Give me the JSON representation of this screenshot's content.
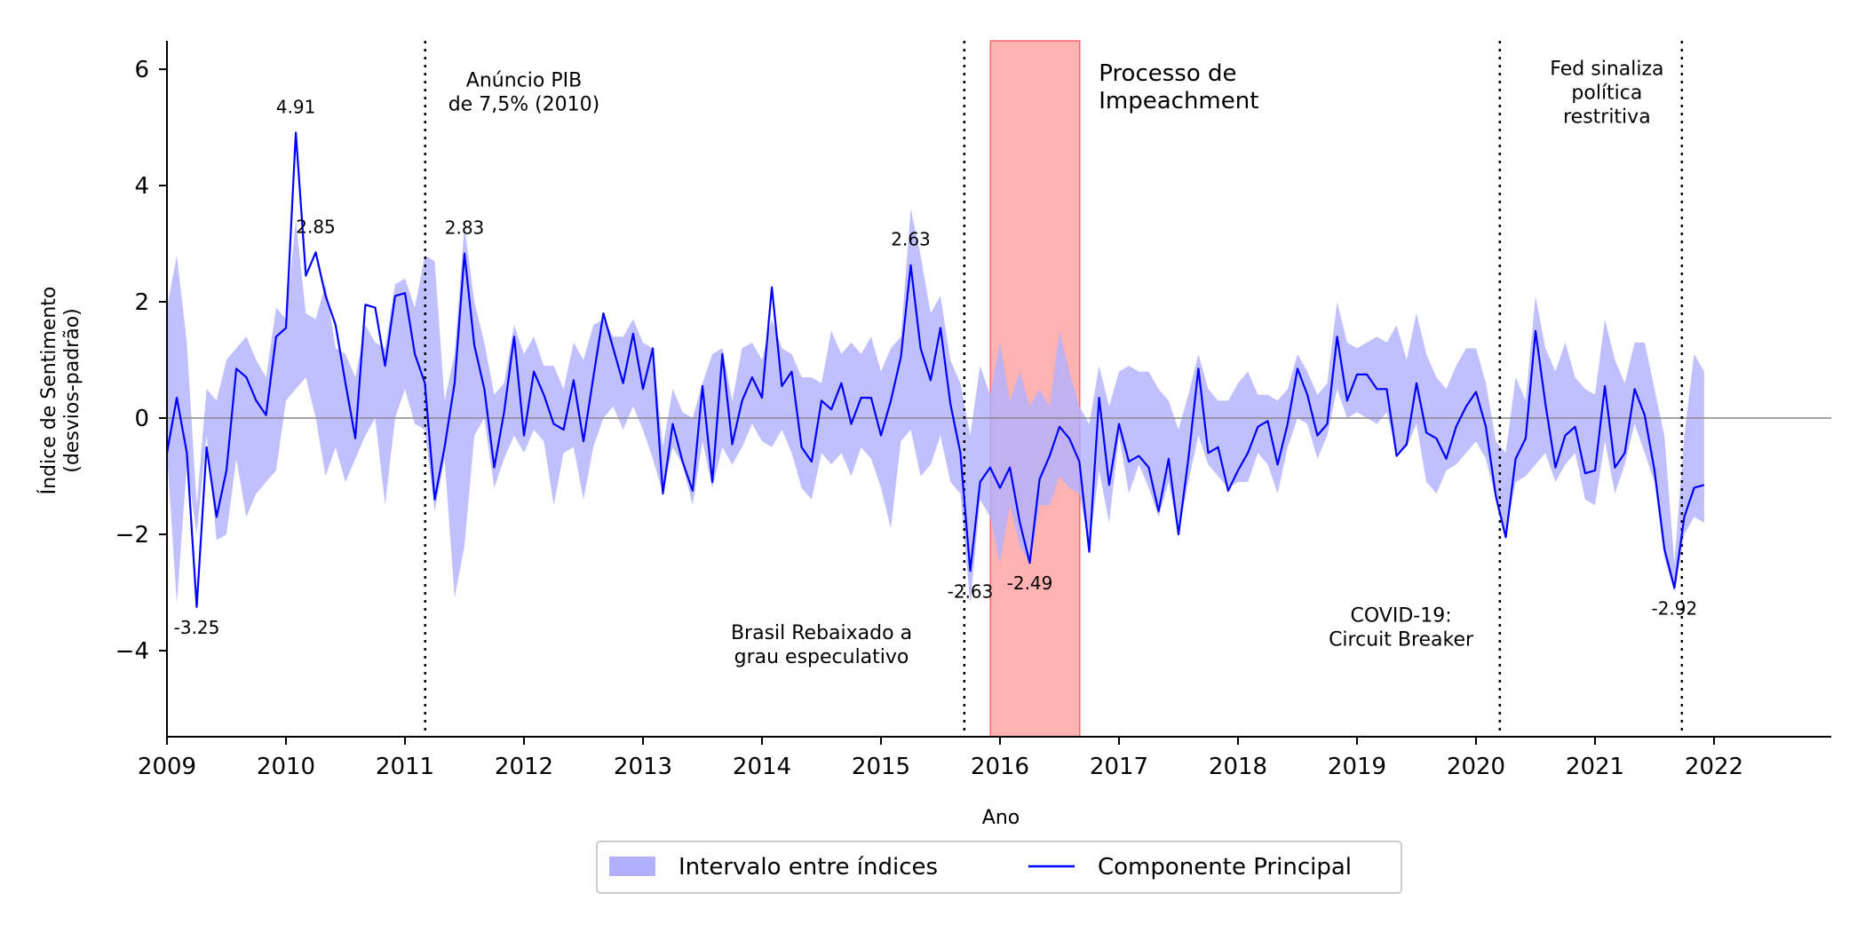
{
  "chart_data": {
    "type": "line",
    "xlabel": "Ano",
    "ylabel_lines": [
      "Índice de Sentimento",
      "(desvios-padrão)"
    ],
    "xlim": [
      2009,
      2023
    ],
    "ylim": [
      -5.5,
      6.5
    ],
    "x_ticks": [
      2009,
      2010,
      2011,
      2012,
      2013,
      2014,
      2015,
      2016,
      2017,
      2018,
      2019,
      2020,
      2021,
      2022
    ],
    "x_tick_labels": [
      "2009",
      "2010",
      "2011",
      "2012",
      "2013",
      "2014",
      "2015",
      "2016",
      "2017",
      "2018",
      "2019",
      "2020",
      "2021",
      "2022"
    ],
    "y_ticks": [
      -4,
      -2,
      0,
      2,
      4,
      6
    ],
    "y_tick_labels": [
      "−4",
      "−2",
      "0",
      "2",
      "4",
      "6"
    ],
    "zero_line": 0,
    "series": [
      {
        "name": "Componente Principal",
        "color": "#0000ff",
        "x": [
          2009.0,
          2009.083,
          2009.167,
          2009.25,
          2009.333,
          2009.417,
          2009.5,
          2009.583,
          2009.667,
          2009.75,
          2009.833,
          2009.917,
          2010.0,
          2010.083,
          2010.167,
          2010.25,
          2010.333,
          2010.417,
          2010.5,
          2010.583,
          2010.667,
          2010.75,
          2010.833,
          2010.917,
          2011.0,
          2011.083,
          2011.167,
          2011.25,
          2011.333,
          2011.417,
          2011.5,
          2011.583,
          2011.667,
          2011.75,
          2011.833,
          2011.917,
          2012.0,
          2012.083,
          2012.167,
          2012.25,
          2012.333,
          2012.417,
          2012.5,
          2012.583,
          2012.667,
          2012.75,
          2012.833,
          2012.917,
          2013.0,
          2013.083,
          2013.167,
          2013.25,
          2013.333,
          2013.417,
          2013.5,
          2013.583,
          2013.667,
          2013.75,
          2013.833,
          2013.917,
          2014.0,
          2014.083,
          2014.167,
          2014.25,
          2014.333,
          2014.417,
          2014.5,
          2014.583,
          2014.667,
          2014.75,
          2014.833,
          2014.917,
          2015.0,
          2015.083,
          2015.167,
          2015.25,
          2015.333,
          2015.417,
          2015.5,
          2015.583,
          2015.667,
          2015.75,
          2015.833,
          2015.917,
          2016.0,
          2016.083,
          2016.167,
          2016.25,
          2016.333,
          2016.417,
          2016.5,
          2016.583,
          2016.667,
          2016.75,
          2016.833,
          2016.917,
          2017.0,
          2017.083,
          2017.167,
          2017.25,
          2017.333,
          2017.417,
          2017.5,
          2017.583,
          2017.667,
          2017.75,
          2017.833,
          2017.917,
          2018.0,
          2018.083,
          2018.167,
          2018.25,
          2018.333,
          2018.417,
          2018.5,
          2018.583,
          2018.667,
          2018.75,
          2018.833,
          2018.917,
          2019.0,
          2019.083,
          2019.167,
          2019.25,
          2019.333,
          2019.417,
          2019.5,
          2019.583,
          2019.667,
          2019.75,
          2019.833,
          2019.917,
          2020.0,
          2020.083,
          2020.167,
          2020.25,
          2020.333,
          2020.417,
          2020.5,
          2020.583,
          2020.667,
          2020.75,
          2020.833,
          2020.917,
          2021.0,
          2021.083,
          2021.167,
          2021.25,
          2021.333,
          2021.417,
          2021.5,
          2021.583,
          2021.667,
          2021.75,
          2021.833,
          2021.917
        ],
        "y": [
          -0.6,
          0.35,
          -0.6,
          -3.25,
          -0.5,
          -1.7,
          -0.9,
          0.85,
          0.7,
          0.3,
          0.05,
          1.4,
          1.55,
          4.91,
          2.45,
          2.85,
          2.1,
          1.6,
          0.6,
          -0.35,
          1.95,
          1.9,
          0.9,
          2.1,
          2.15,
          1.1,
          0.6,
          -1.4,
          -0.5,
          0.6,
          2.83,
          1.25,
          0.5,
          -0.85,
          0.1,
          1.4,
          -0.3,
          0.8,
          0.4,
          -0.1,
          -0.2,
          0.65,
          -0.4,
          0.7,
          1.8,
          1.2,
          0.6,
          1.45,
          0.5,
          1.2,
          -1.3,
          -0.1,
          -0.75,
          -1.25,
          0.55,
          -1.1,
          1.1,
          -0.45,
          0.3,
          0.7,
          0.35,
          2.25,
          0.55,
          0.8,
          -0.5,
          -0.75,
          0.3,
          0.15,
          0.6,
          -0.1,
          0.35,
          0.35,
          -0.3,
          0.3,
          1.05,
          2.63,
          1.2,
          0.65,
          1.55,
          0.25,
          -0.6,
          -2.63,
          -1.1,
          -0.85,
          -1.2,
          -0.85,
          -1.8,
          -2.49,
          -1.05,
          -0.65,
          -0.15,
          -0.35,
          -0.75,
          -2.3,
          0.35,
          -1.15,
          -0.1,
          -0.75,
          -0.65,
          -0.85,
          -1.6,
          -0.7,
          -2.0,
          -0.7,
          0.85,
          -0.6,
          -0.5,
          -1.25,
          -0.9,
          -0.6,
          -0.15,
          -0.05,
          -0.8,
          -0.1,
          0.85,
          0.4,
          -0.3,
          -0.1,
          1.4,
          0.3,
          0.75,
          0.75,
          0.5,
          0.5,
          -0.65,
          -0.45,
          0.6,
          -0.25,
          -0.35,
          -0.7,
          -0.15,
          0.2,
          0.45,
          -0.15,
          -1.35,
          -2.05,
          -0.7,
          -0.35,
          1.5,
          0.25,
          -0.85,
          -0.3,
          -0.15,
          -0.95,
          -0.9,
          0.55,
          -0.85,
          -0.6,
          0.5,
          0.05,
          -0.9,
          -2.25,
          -2.92,
          -1.7,
          -1.2,
          -1.15
        ]
      }
    ],
    "band": {
      "name": "Intervalo entre índices",
      "color": "#b0b0ff",
      "lower": [
        -0.6,
        -3.2,
        -0.8,
        -2.0,
        -0.3,
        -2.1,
        -2.0,
        -0.7,
        -1.7,
        -1.3,
        -1.1,
        -0.9,
        0.3,
        0.5,
        0.7,
        0.0,
        -1.0,
        -0.5,
        -1.1,
        -0.7,
        -0.3,
        0.0,
        -1.5,
        0.0,
        0.5,
        -0.1,
        -0.2,
        -1.6,
        -0.7,
        -3.1,
        -2.2,
        -0.3,
        0.0,
        -1.2,
        -0.7,
        -0.3,
        -0.6,
        -0.2,
        -0.4,
        -1.5,
        -0.6,
        -0.5,
        -1.4,
        -0.5,
        0.0,
        0.2,
        -0.2,
        0.2,
        -0.2,
        -0.7,
        -1.3,
        -0.5,
        -0.8,
        -1.5,
        -0.4,
        -1.2,
        -0.5,
        -0.8,
        -0.5,
        -0.1,
        -0.4,
        -0.5,
        -0.2,
        -0.6,
        -1.2,
        -1.4,
        -0.6,
        -0.8,
        -0.6,
        -1.0,
        -0.5,
        -0.7,
        -1.2,
        -1.9,
        -0.4,
        -0.2,
        -1.0,
        -0.8,
        -0.3,
        -1.1,
        -1.3,
        -3.2,
        -1.4,
        -1.7,
        -2.5,
        -1.5,
        -2.2,
        -2.5,
        -1.5,
        -1.5,
        -1.0,
        -1.2,
        -1.3,
        -2.2,
        -0.9,
        -1.8,
        -0.3,
        -1.3,
        -0.8,
        -1.2,
        -1.7,
        -1.1,
        -2.0,
        -1.1,
        -0.3,
        -0.8,
        -1.0,
        -1.2,
        -1.1,
        -1.1,
        -0.6,
        -0.8,
        -1.3,
        -0.5,
        0.0,
        -0.1,
        -0.7,
        -0.3,
        0.5,
        0.0,
        0.1,
        0.0,
        -0.1,
        0.1,
        -0.6,
        -0.5,
        -0.1,
        -1.1,
        -1.3,
        -0.9,
        -0.8,
        -0.6,
        -0.4,
        -0.7,
        -1.4,
        -2.0,
        -1.1,
        -1.0,
        -0.8,
        -0.6,
        -1.1,
        -0.8,
        -0.6,
        -1.4,
        -1.5,
        -0.4,
        -1.3,
        -0.8,
        -0.1,
        -0.6,
        -1.1,
        -2.4,
        -3.0,
        -2.0,
        -1.7,
        -1.8
      ],
      "upper": [
        1.9,
        2.8,
        1.3,
        -1.5,
        0.5,
        0.3,
        1.0,
        1.2,
        1.4,
        1.0,
        0.7,
        1.9,
        1.7,
        3.4,
        1.8,
        1.7,
        2.3,
        1.2,
        1.1,
        0.7,
        1.6,
        1.3,
        1.2,
        2.3,
        2.4,
        1.9,
        2.8,
        2.7,
        0.3,
        1.1,
        3.3,
        2.0,
        1.3,
        0.4,
        0.6,
        1.6,
        1.1,
        1.4,
        0.9,
        0.9,
        0.5,
        1.3,
        1.0,
        1.6,
        1.7,
        1.4,
        1.4,
        1.7,
        1.3,
        1.2,
        -0.5,
        0.5,
        0.1,
        0.0,
        0.6,
        1.1,
        1.2,
        0.3,
        1.2,
        1.3,
        1.0,
        1.7,
        1.2,
        1.1,
        0.7,
        0.7,
        0.6,
        1.5,
        1.1,
        1.3,
        1.1,
        1.4,
        0.8,
        1.2,
        1.4,
        3.6,
        2.8,
        1.8,
        2.1,
        1.0,
        0.6,
        -0.3,
        0.9,
        0.4,
        1.3,
        0.3,
        0.8,
        0.2,
        0.5,
        0.2,
        1.5,
        0.8,
        0.2,
        -0.1,
        0.9,
        0.2,
        0.8,
        0.9,
        0.8,
        0.8,
        0.5,
        0.3,
        -0.2,
        0.4,
        1.1,
        0.5,
        0.3,
        0.3,
        0.6,
        0.8,
        0.4,
        0.4,
        0.3,
        0.5,
        1.1,
        0.8,
        0.4,
        0.6,
        2.0,
        1.3,
        1.2,
        1.3,
        1.4,
        1.3,
        1.6,
        1.0,
        1.8,
        1.1,
        0.7,
        0.5,
        0.9,
        1.2,
        1.2,
        0.6,
        -0.4,
        -0.6,
        0.7,
        0.3,
        2.1,
        1.2,
        0.8,
        1.3,
        0.7,
        0.5,
        0.4,
        1.7,
        1.0,
        0.6,
        1.3,
        1.3,
        0.5,
        -0.3,
        -2.5,
        -0.3,
        1.1,
        0.8
      ]
    },
    "point_labels": [
      {
        "x": 2010.083,
        "y": 4.91,
        "text": "4.91",
        "pos": "above"
      },
      {
        "x": 2010.25,
        "y": 2.85,
        "text": "2.85",
        "pos": "above"
      },
      {
        "x": 2011.5,
        "y": 2.83,
        "text": "2.83",
        "pos": "above"
      },
      {
        "x": 2015.25,
        "y": 2.63,
        "text": "2.63",
        "pos": "above"
      },
      {
        "x": 2009.25,
        "y": -3.25,
        "text": "-3.25",
        "pos": "below"
      },
      {
        "x": 2015.75,
        "y": -2.63,
        "text": "-2.63",
        "pos": "below"
      },
      {
        "x": 2016.25,
        "y": -2.49,
        "text": "-2.49",
        "pos": "below"
      },
      {
        "x": 2021.667,
        "y": -2.92,
        "text": "-2.92",
        "pos": "below"
      }
    ],
    "event_lines": [
      2011.17,
      2015.7,
      2020.2,
      2021.73
    ],
    "shaded_period": {
      "x0": 2015.92,
      "x1": 2016.67,
      "color": "#ff6666"
    },
    "annotations": [
      {
        "lines": [
          "Anúncio PIB",
          "de 7,5% (2010)"
        ],
        "x": 2012.0,
        "y": 5.7,
        "size": "small"
      },
      {
        "lines": [
          "Processo de",
          "Impeachment"
        ],
        "x": 2016.83,
        "y": 5.8,
        "size": "big",
        "anchor": "start"
      },
      {
        "lines": [
          "Brasil Rebaixado a",
          "grau especulativo"
        ],
        "x": 2014.5,
        "y": -3.8,
        "size": "small"
      },
      {
        "lines": [
          "COVID-19:",
          "Circuit Breaker"
        ],
        "x": 2019.37,
        "y": -3.5,
        "size": "small"
      },
      {
        "lines": [
          "Fed sinaliza",
          "política",
          "restritiva"
        ],
        "x": 2021.1,
        "y": 5.9,
        "size": "small"
      }
    ],
    "legend": {
      "placement": "bottom-center",
      "items": [
        {
          "label": "Intervalo entre índices",
          "kind": "patch",
          "color": "#b0b0ff"
        },
        {
          "label": "Componente Principal",
          "kind": "line",
          "color": "#0000ff"
        }
      ]
    }
  }
}
